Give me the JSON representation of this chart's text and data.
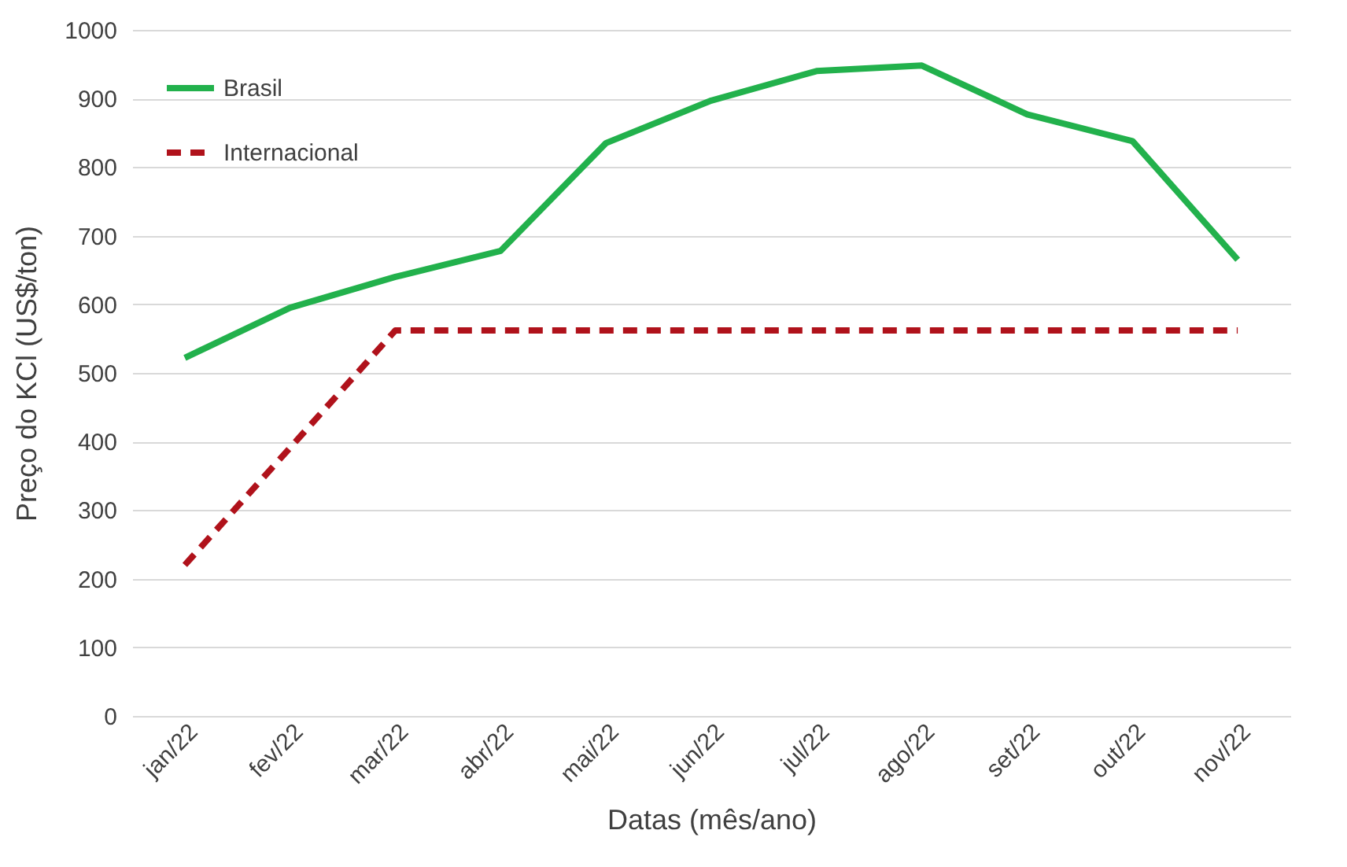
{
  "chart_data": {
    "type": "line",
    "xlabel": "Datas (mês/ano)",
    "ylabel": "Preço do KCl (US$/ton)",
    "categories": [
      "jan/22",
      "fev/22",
      "mar/22",
      "abr/22",
      "mai/22",
      "jun/22",
      "jul/22",
      "ago/22",
      "set/22",
      "out/22",
      "nov/22"
    ],
    "series": [
      {
        "name": "Brasil",
        "color": "#22b14c",
        "line_style": "solid",
        "values": [
          522,
          595,
          640,
          678,
          835,
          897,
          940,
          948,
          877,
          838,
          665
        ]
      },
      {
        "name": "Internacional",
        "color": "#b0121b",
        "line_style": "dashed",
        "values": [
          220,
          391,
          562,
          562,
          562,
          562,
          562,
          562,
          562,
          562,
          562
        ]
      }
    ],
    "ylim": [
      0,
      1000
    ],
    "yticks": [
      0,
      100,
      200,
      300,
      400,
      500,
      600,
      700,
      800,
      900,
      1000
    ],
    "grid": "y",
    "legend": "top left",
    "marker": "none"
  }
}
